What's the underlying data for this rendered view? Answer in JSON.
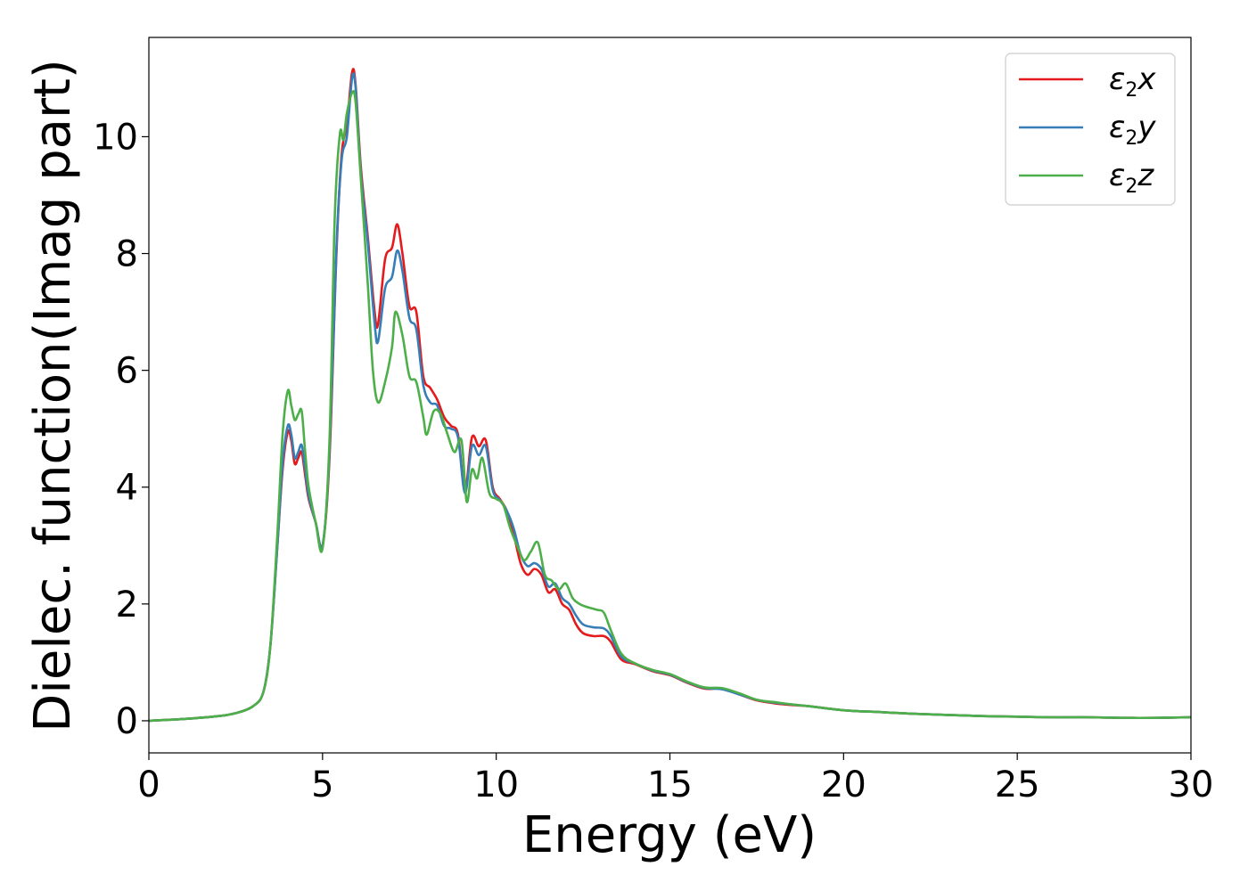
{
  "chart_data": {
    "type": "line",
    "title": "",
    "xlabel": "Energy (eV)",
    "ylabel": "Dielec. function(Imag part)",
    "xlim": [
      0,
      30
    ],
    "ylim": [
      -0.55,
      11.7
    ],
    "xticks": [
      0,
      5,
      10,
      15,
      20,
      25,
      30
    ],
    "yticks": [
      0,
      2,
      4,
      6,
      8,
      10
    ],
    "grid": false,
    "legend_position": "top-right",
    "series": [
      {
        "name": "ε2x",
        "label_main": "ε",
        "label_sub": "2",
        "label_suffix": "x",
        "color": "#e41a1c",
        "points": [
          [
            0,
            0
          ],
          [
            1,
            0.03
          ],
          [
            2,
            0.08
          ],
          [
            2.5,
            0.13
          ],
          [
            3,
            0.25
          ],
          [
            3.3,
            0.5
          ],
          [
            3.5,
            1.3
          ],
          [
            3.7,
            3.0
          ],
          [
            3.85,
            4.3
          ],
          [
            4.0,
            4.95
          ],
          [
            4.1,
            4.8
          ],
          [
            4.2,
            4.4
          ],
          [
            4.3,
            4.5
          ],
          [
            4.4,
            4.6
          ],
          [
            4.5,
            4.2
          ],
          [
            4.6,
            3.8
          ],
          [
            4.8,
            3.4
          ],
          [
            5.0,
            3.0
          ],
          [
            5.2,
            4.5
          ],
          [
            5.4,
            8.0
          ],
          [
            5.55,
            9.7
          ],
          [
            5.7,
            10.2
          ],
          [
            5.85,
            11.1
          ],
          [
            5.95,
            10.9
          ],
          [
            6.1,
            9.5
          ],
          [
            6.3,
            8.3
          ],
          [
            6.5,
            7.0
          ],
          [
            6.6,
            6.8
          ],
          [
            6.8,
            7.9
          ],
          [
            7.0,
            8.1
          ],
          [
            7.15,
            8.5
          ],
          [
            7.3,
            8.0
          ],
          [
            7.5,
            7.1
          ],
          [
            7.7,
            7.0
          ],
          [
            7.9,
            5.9
          ],
          [
            8.1,
            5.7
          ],
          [
            8.3,
            5.5
          ],
          [
            8.5,
            5.2
          ],
          [
            8.7,
            5.05
          ],
          [
            8.9,
            4.9
          ],
          [
            9.1,
            3.95
          ],
          [
            9.3,
            4.85
          ],
          [
            9.5,
            4.7
          ],
          [
            9.7,
            4.8
          ],
          [
            9.9,
            4.0
          ],
          [
            10.1,
            3.8
          ],
          [
            10.3,
            3.6
          ],
          [
            10.5,
            3.2
          ],
          [
            10.7,
            2.7
          ],
          [
            10.9,
            2.5
          ],
          [
            11.1,
            2.6
          ],
          [
            11.3,
            2.5
          ],
          [
            11.5,
            2.2
          ],
          [
            11.7,
            2.25
          ],
          [
            11.9,
            2.0
          ],
          [
            12.1,
            1.9
          ],
          [
            12.3,
            1.65
          ],
          [
            12.5,
            1.5
          ],
          [
            12.8,
            1.45
          ],
          [
            13.1,
            1.45
          ],
          [
            13.3,
            1.35
          ],
          [
            13.6,
            1.05
          ],
          [
            14.0,
            0.97
          ],
          [
            14.5,
            0.85
          ],
          [
            15.0,
            0.78
          ],
          [
            15.5,
            0.65
          ],
          [
            16.0,
            0.55
          ],
          [
            16.5,
            0.55
          ],
          [
            17.0,
            0.45
          ],
          [
            17.5,
            0.35
          ],
          [
            18.0,
            0.3
          ],
          [
            18.5,
            0.27
          ],
          [
            19.0,
            0.25
          ],
          [
            20.0,
            0.18
          ],
          [
            21.0,
            0.15
          ],
          [
            22.0,
            0.12
          ],
          [
            23.0,
            0.1
          ],
          [
            24.0,
            0.08
          ],
          [
            25.0,
            0.07
          ],
          [
            26.0,
            0.06
          ],
          [
            27.0,
            0.06
          ],
          [
            28.0,
            0.05
          ],
          [
            29.0,
            0.05
          ],
          [
            30.0,
            0.06
          ]
        ]
      },
      {
        "name": "ε2y",
        "label_main": "ε",
        "label_sub": "2",
        "label_suffix": "y",
        "color": "#377eb8",
        "points": [
          [
            0,
            0
          ],
          [
            1,
            0.03
          ],
          [
            2,
            0.08
          ],
          [
            2.5,
            0.13
          ],
          [
            3,
            0.25
          ],
          [
            3.3,
            0.5
          ],
          [
            3.5,
            1.3
          ],
          [
            3.7,
            3.0
          ],
          [
            3.85,
            4.4
          ],
          [
            4.0,
            5.05
          ],
          [
            4.1,
            4.9
          ],
          [
            4.2,
            4.5
          ],
          [
            4.3,
            4.6
          ],
          [
            4.4,
            4.72
          ],
          [
            4.5,
            4.3
          ],
          [
            4.6,
            3.85
          ],
          [
            4.8,
            3.4
          ],
          [
            5.0,
            3.0
          ],
          [
            5.2,
            4.6
          ],
          [
            5.4,
            8.1
          ],
          [
            5.55,
            9.6
          ],
          [
            5.7,
            10.0
          ],
          [
            5.85,
            11.0
          ],
          [
            5.95,
            10.85
          ],
          [
            6.1,
            9.4
          ],
          [
            6.3,
            8.2
          ],
          [
            6.5,
            6.8
          ],
          [
            6.6,
            6.5
          ],
          [
            6.8,
            7.4
          ],
          [
            7.0,
            7.6
          ],
          [
            7.15,
            8.05
          ],
          [
            7.3,
            7.7
          ],
          [
            7.5,
            6.9
          ],
          [
            7.7,
            6.7
          ],
          [
            7.9,
            5.75
          ],
          [
            8.1,
            5.45
          ],
          [
            8.3,
            5.4
          ],
          [
            8.5,
            5.05
          ],
          [
            8.7,
            5.0
          ],
          [
            8.9,
            4.85
          ],
          [
            9.1,
            3.9
          ],
          [
            9.3,
            4.7
          ],
          [
            9.5,
            4.55
          ],
          [
            9.7,
            4.7
          ],
          [
            9.9,
            3.95
          ],
          [
            10.1,
            3.78
          ],
          [
            10.3,
            3.6
          ],
          [
            10.5,
            3.3
          ],
          [
            10.7,
            2.85
          ],
          [
            10.9,
            2.65
          ],
          [
            11.1,
            2.7
          ],
          [
            11.3,
            2.6
          ],
          [
            11.5,
            2.3
          ],
          [
            11.7,
            2.35
          ],
          [
            11.9,
            2.1
          ],
          [
            12.1,
            2.0
          ],
          [
            12.3,
            1.8
          ],
          [
            12.5,
            1.65
          ],
          [
            12.8,
            1.6
          ],
          [
            13.1,
            1.58
          ],
          [
            13.3,
            1.45
          ],
          [
            13.6,
            1.1
          ],
          [
            14.0,
            0.98
          ],
          [
            14.5,
            0.86
          ],
          [
            15.0,
            0.79
          ],
          [
            15.5,
            0.66
          ],
          [
            16.0,
            0.56
          ],
          [
            16.5,
            0.54
          ],
          [
            17.0,
            0.45
          ],
          [
            17.5,
            0.36
          ],
          [
            18.0,
            0.31
          ],
          [
            18.5,
            0.28
          ],
          [
            19.0,
            0.25
          ],
          [
            20.0,
            0.18
          ],
          [
            21.0,
            0.15
          ],
          [
            22.0,
            0.12
          ],
          [
            23.0,
            0.1
          ],
          [
            24.0,
            0.08
          ],
          [
            25.0,
            0.07
          ],
          [
            26.0,
            0.06
          ],
          [
            27.0,
            0.06
          ],
          [
            28.0,
            0.05
          ],
          [
            29.0,
            0.05
          ],
          [
            30.0,
            0.06
          ]
        ]
      },
      {
        "name": "ε2z",
        "label_main": "ε",
        "label_sub": "2",
        "label_suffix": "z",
        "color": "#4daf4a",
        "points": [
          [
            0,
            0
          ],
          [
            1,
            0.03
          ],
          [
            2,
            0.08
          ],
          [
            2.5,
            0.13
          ],
          [
            3,
            0.25
          ],
          [
            3.3,
            0.5
          ],
          [
            3.5,
            1.3
          ],
          [
            3.7,
            3.2
          ],
          [
            3.85,
            4.9
          ],
          [
            4.0,
            5.65
          ],
          [
            4.1,
            5.4
          ],
          [
            4.2,
            5.15
          ],
          [
            4.3,
            5.25
          ],
          [
            4.4,
            5.3
          ],
          [
            4.5,
            4.6
          ],
          [
            4.6,
            4.0
          ],
          [
            4.8,
            3.4
          ],
          [
            5.0,
            2.95
          ],
          [
            5.2,
            4.8
          ],
          [
            5.35,
            8.6
          ],
          [
            5.5,
            10.05
          ],
          [
            5.6,
            9.95
          ],
          [
            5.7,
            10.4
          ],
          [
            5.85,
            10.75
          ],
          [
            5.95,
            10.6
          ],
          [
            6.1,
            9.3
          ],
          [
            6.3,
            7.5
          ],
          [
            6.45,
            6.0
          ],
          [
            6.6,
            5.45
          ],
          [
            6.8,
            5.8
          ],
          [
            7.0,
            6.4
          ],
          [
            7.1,
            7.0
          ],
          [
            7.3,
            6.6
          ],
          [
            7.5,
            5.9
          ],
          [
            7.7,
            5.8
          ],
          [
            7.9,
            5.2
          ],
          [
            8.0,
            4.9
          ],
          [
            8.2,
            5.3
          ],
          [
            8.4,
            5.25
          ],
          [
            8.6,
            4.9
          ],
          [
            8.8,
            4.6
          ],
          [
            9.0,
            4.8
          ],
          [
            9.15,
            3.75
          ],
          [
            9.3,
            4.3
          ],
          [
            9.45,
            4.15
          ],
          [
            9.6,
            4.5
          ],
          [
            9.8,
            3.9
          ],
          [
            10.0,
            3.8
          ],
          [
            10.2,
            3.7
          ],
          [
            10.4,
            3.3
          ],
          [
            10.6,
            3.0
          ],
          [
            10.8,
            2.75
          ],
          [
            11.0,
            2.9
          ],
          [
            11.2,
            3.05
          ],
          [
            11.4,
            2.5
          ],
          [
            11.6,
            2.4
          ],
          [
            11.8,
            2.25
          ],
          [
            12.0,
            2.35
          ],
          [
            12.2,
            2.1
          ],
          [
            12.4,
            2.0
          ],
          [
            12.6,
            1.95
          ],
          [
            12.9,
            1.9
          ],
          [
            13.1,
            1.85
          ],
          [
            13.3,
            1.55
          ],
          [
            13.6,
            1.15
          ],
          [
            14.0,
            0.98
          ],
          [
            14.5,
            0.87
          ],
          [
            15.0,
            0.8
          ],
          [
            15.5,
            0.67
          ],
          [
            16.0,
            0.57
          ],
          [
            16.5,
            0.56
          ],
          [
            17.0,
            0.47
          ],
          [
            17.5,
            0.36
          ],
          [
            18.0,
            0.32
          ],
          [
            18.5,
            0.28
          ],
          [
            19.0,
            0.25
          ],
          [
            20.0,
            0.18
          ],
          [
            21.0,
            0.15
          ],
          [
            22.0,
            0.12
          ],
          [
            23.0,
            0.1
          ],
          [
            24.0,
            0.08
          ],
          [
            25.0,
            0.07
          ],
          [
            26.0,
            0.06
          ],
          [
            27.0,
            0.06
          ],
          [
            28.0,
            0.05
          ],
          [
            29.0,
            0.05
          ],
          [
            30.0,
            0.06
          ]
        ]
      }
    ]
  }
}
